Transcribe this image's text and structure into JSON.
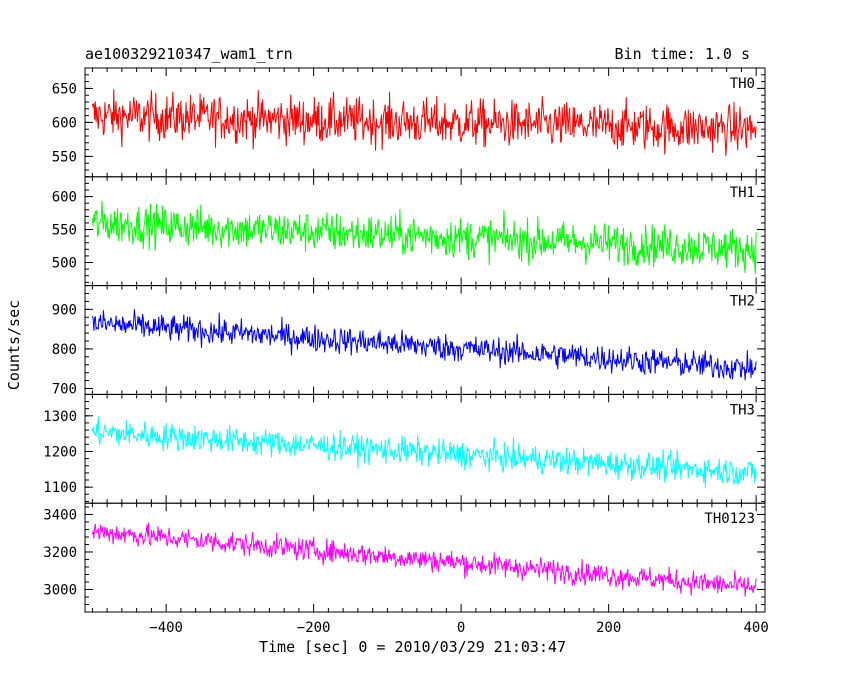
{
  "header": {
    "title": "ae100329210347_wam1_trn",
    "bin_time": "Bin time: 1.0 s"
  },
  "axes": {
    "xlabel": "Time [sec] 0 = 2010/03/29 21:03:47",
    "ylabel": "Counts/sec"
  },
  "chart_data": {
    "type": "line",
    "title": "ae100329210347_wam1_trn",
    "subtitle": "Bin time: 1.0 s",
    "xlabel": "Time [sec] 0 = 2010/03/29 21:03:47",
    "ylabel": "Counts/sec",
    "xlim": [
      -510,
      412
    ],
    "x_ticks": [
      -400,
      -200,
      0,
      200,
      400
    ],
    "x_start": -500,
    "x_end": 400,
    "grid": false,
    "legend": "none",
    "panels": [
      {
        "name": "TH0",
        "color": "#ff0000",
        "ylim": [
          520,
          680
        ],
        "y_ticks": [
          550,
          600,
          650
        ],
        "trend": [
          [
            -500,
            610
          ],
          [
            400,
            590
          ]
        ],
        "noise_amplitude": 45
      },
      {
        "name": "TH1",
        "color": "#00ff00",
        "ylim": [
          465,
          630
        ],
        "y_ticks": [
          500,
          550,
          600
        ],
        "trend": [
          [
            -500,
            560
          ],
          [
            400,
            520
          ]
        ],
        "noise_amplitude": 40
      },
      {
        "name": "TH2",
        "color": "#0000ff",
        "ylim": [
          685,
          960
        ],
        "y_ticks": [
          700,
          800,
          900
        ],
        "trend": [
          [
            -500,
            865
          ],
          [
            400,
            750
          ]
        ],
        "noise_amplitude": 45
      },
      {
        "name": "TH3",
        "color": "#00ffff",
        "ylim": [
          1055,
          1360
        ],
        "y_ticks": [
          1100,
          1200,
          1300
        ],
        "trend": [
          [
            -500,
            1255
          ],
          [
            400,
            1140
          ]
        ],
        "noise_amplitude": 50
      },
      {
        "name": "TH0123",
        "color": "#ff00ff",
        "ylim": [
          2880,
          3460
        ],
        "y_ticks": [
          3000,
          3200,
          3400
        ],
        "trend": [
          [
            -500,
            3310
          ],
          [
            400,
            3010
          ]
        ],
        "noise_amplitude": 80
      }
    ]
  }
}
